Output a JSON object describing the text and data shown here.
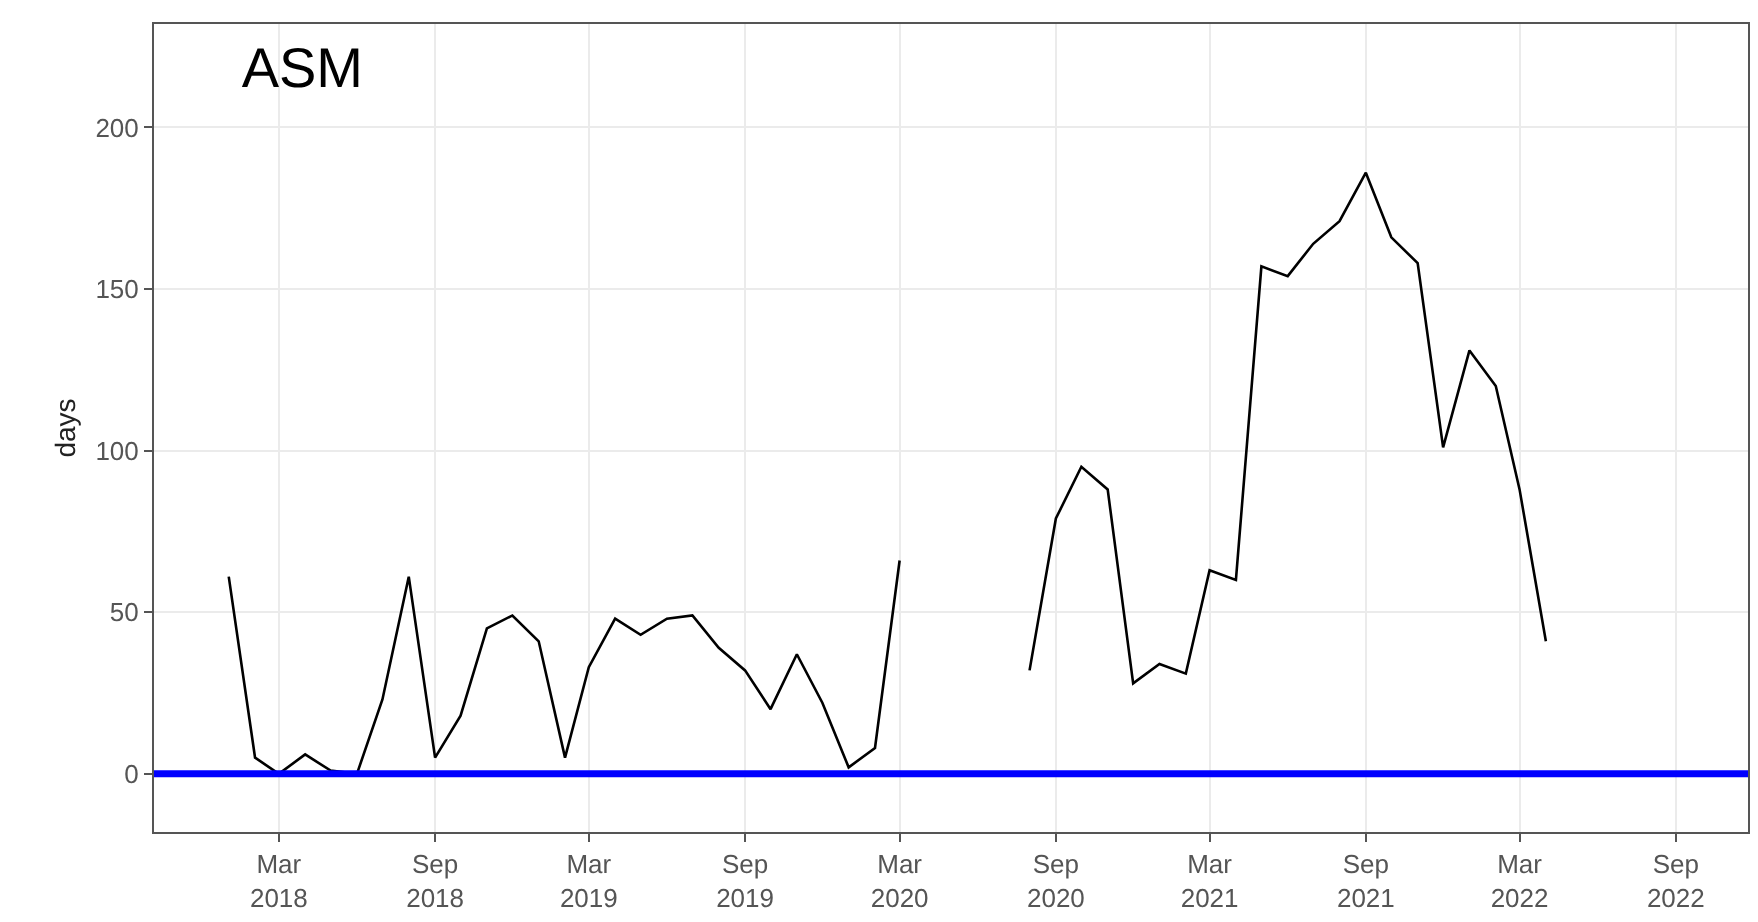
{
  "chart_data": {
    "type": "line",
    "title": "ASM",
    "ylabel": "days",
    "series": [
      {
        "color": "#000000",
        "x": [
          "2018-01",
          "2018-02",
          "2018-03",
          "2018-04",
          "2018-05",
          "2018-06",
          "2018-07",
          "2018-08",
          "2018-09",
          "2018-10",
          "2018-11",
          "2018-12",
          "2019-01",
          "2019-02",
          "2019-03",
          "2019-04",
          "2019-05",
          "2019-06",
          "2019-07",
          "2019-08",
          "2019-09",
          "2019-10",
          "2019-11",
          "2019-12",
          "2020-01",
          "2020-02",
          "2020-03",
          "2020-04",
          "2020-05",
          "2020-06",
          "2020-07",
          "2020-08",
          "2020-09",
          "2020-10",
          "2020-11",
          "2020-12",
          "2021-01",
          "2021-02",
          "2021-03",
          "2021-04",
          "2021-05",
          "2021-06",
          "2021-07",
          "2021-08",
          "2021-09",
          "2021-10",
          "2021-11",
          "2021-12",
          "2022-01",
          "2022-02",
          "2022-03",
          "2022-04"
        ],
        "values": [
          61,
          5,
          0,
          6,
          1,
          0,
          23,
          61,
          5,
          18,
          45,
          49,
          41,
          5,
          33,
          48,
          43,
          48,
          49,
          39,
          32,
          20,
          37,
          22,
          2,
          8,
          66,
          null,
          null,
          null,
          null,
          32,
          79,
          95,
          88,
          28,
          34,
          31,
          63,
          60,
          157,
          154,
          164,
          171,
          186,
          166,
          158,
          101,
          131,
          120,
          88,
          41
        ]
      }
    ],
    "xlim": [
      "2017-10-05",
      "2022-11-25"
    ],
    "xticks": [
      {
        "value": "2018-03-01",
        "label": "Mar\n2018"
      },
      {
        "value": "2018-09-01",
        "label": "Sep\n2018"
      },
      {
        "value": "2019-03-01",
        "label": "Mar\n2019"
      },
      {
        "value": "2019-09-01",
        "label": "Sep\n2019"
      },
      {
        "value": "2020-03-01",
        "label": "Mar\n2020"
      },
      {
        "value": "2020-09-01",
        "label": "Sep\n2020"
      },
      {
        "value": "2021-03-01",
        "label": "Mar\n2021"
      },
      {
        "value": "2021-09-01",
        "label": "Sep\n2021"
      },
      {
        "value": "2022-03-01",
        "label": "Mar\n2022"
      },
      {
        "value": "2022-09-01",
        "label": "Sep\n2022"
      }
    ],
    "ylim": [
      -18,
      232
    ],
    "yticks": [
      0,
      50,
      100,
      150,
      200
    ],
    "ref_lines": [
      {
        "axis": "y",
        "value": 0,
        "color": "#0000ff",
        "line_style": "solid"
      }
    ],
    "grid": true,
    "marker": "none",
    "line_style": "solid"
  }
}
